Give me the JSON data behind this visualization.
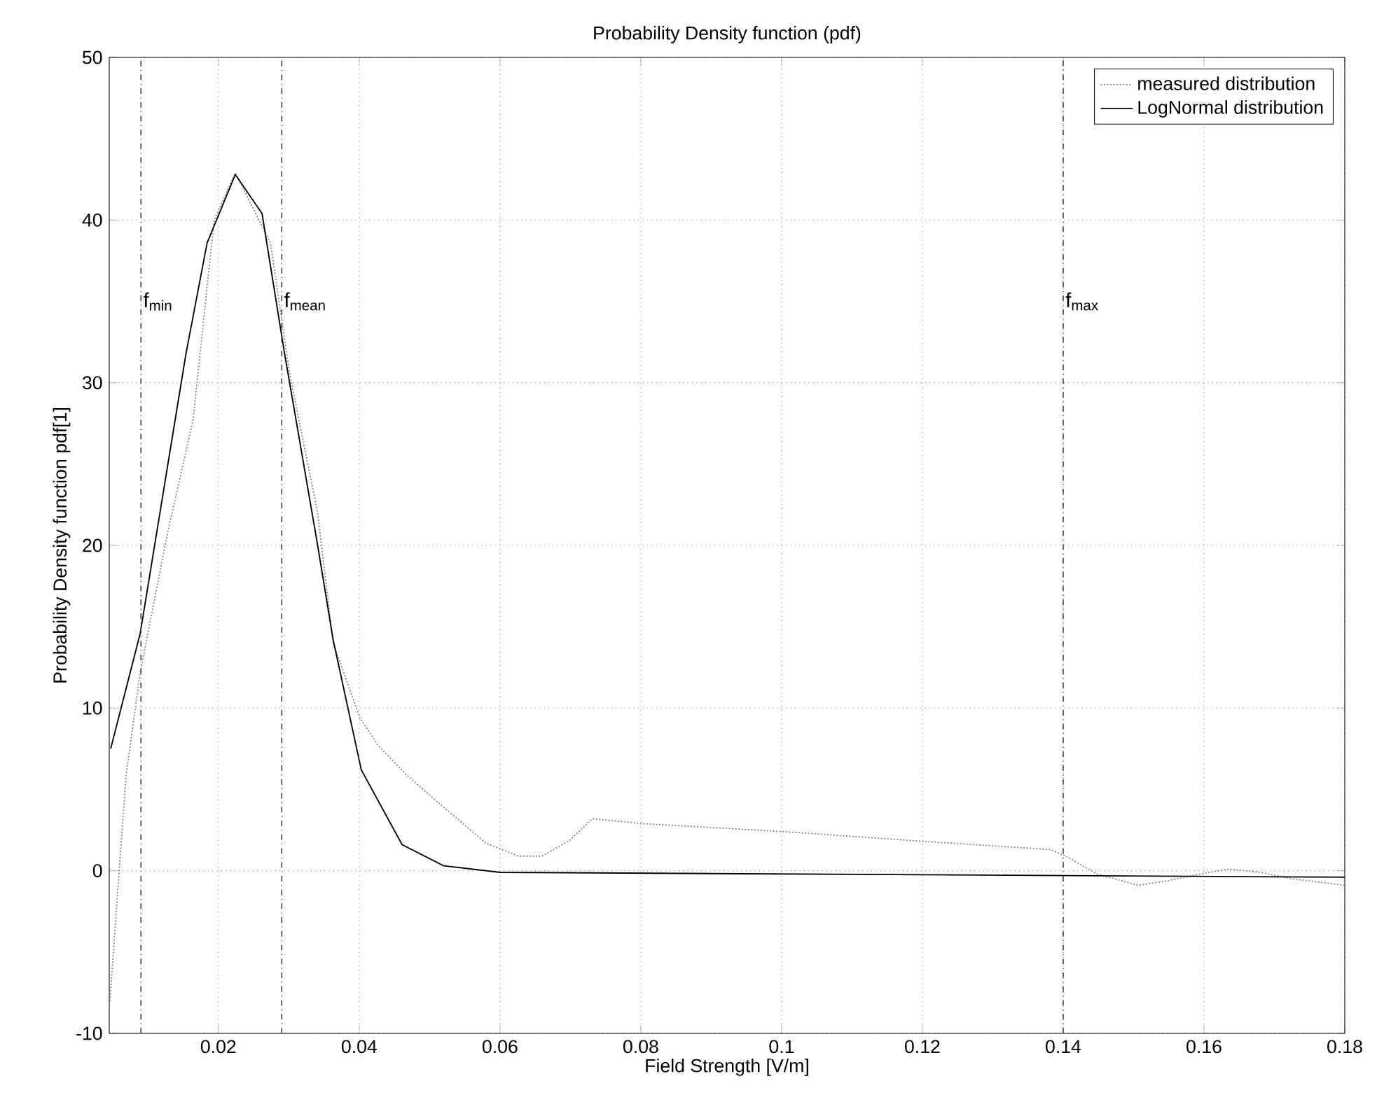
{
  "chart_data": {
    "type": "line",
    "title": "Probability Density function (pdf)",
    "xlabel": "Field Strength [V/m]",
    "ylabel": "Probability Density function pdf[1]",
    "xlim": [
      0.0045,
      0.18
    ],
    "ylim": [
      -10,
      50
    ],
    "xticks": [
      0.02,
      0.04,
      0.06,
      0.08,
      0.1,
      0.12,
      0.14,
      0.16,
      0.18
    ],
    "yticks": [
      -10,
      0,
      10,
      20,
      30,
      40,
      50
    ],
    "grid": true,
    "legend": "top right",
    "marker": "none",
    "series": [
      {
        "name": "measured distribution",
        "color": "#808080",
        "line_style": "dotted",
        "x": [
          0.0046,
          0.0059,
          0.0069,
          0.0089,
          0.0128,
          0.0164,
          0.0194,
          0.0224,
          0.0274,
          0.0301,
          0.0341,
          0.0363,
          0.0401,
          0.0427,
          0.0467,
          0.0512,
          0.058,
          0.0626,
          0.066,
          0.07,
          0.0731,
          0.08,
          0.1004,
          0.1203,
          0.1382,
          0.1408,
          0.1448,
          0.1507,
          0.155,
          0.1595,
          0.1635,
          0.168,
          0.1726,
          0.18
        ],
        "values": [
          -8,
          0,
          5.9,
          12.2,
          20.8,
          27.7,
          40,
          42.9,
          38.6,
          30.6,
          22,
          14,
          9.4,
          7.7,
          5.9,
          4.2,
          1.7,
          0.9,
          0.9,
          1.9,
          3.2,
          2.9,
          2.4,
          1.8,
          1.3,
          0.8,
          -0.2,
          -0.9,
          -0.6,
          -0.2,
          0.1,
          -0.1,
          -0.5,
          -0.9
        ]
      },
      {
        "name": "LogNormal distribution",
        "color": "#000000",
        "line_style": "solid",
        "x": [
          0.0047,
          0.0089,
          0.0154,
          0.0184,
          0.0224,
          0.0262,
          0.0294,
          0.0341,
          0.0363,
          0.0403,
          0.0461,
          0.052,
          0.06,
          0.1,
          0.14,
          0.18
        ],
        "values": [
          7.5,
          14.6,
          31.8,
          38.6,
          42.8,
          40.4,
          31.8,
          20,
          14.2,
          6.2,
          1.6,
          0.3,
          -0.1,
          -0.2,
          -0.3,
          -0.4
        ]
      }
    ],
    "ref_lines": [
      {
        "axis": "x",
        "value": 0.009,
        "label": "f$_{min}$",
        "color": "#404040",
        "line_style": "dashed"
      },
      {
        "axis": "x",
        "value": 0.029,
        "label": "f$_{mean}$",
        "color": "#404040",
        "line_style": "dashed"
      },
      {
        "axis": "x",
        "value": 0.14,
        "label": "f$_{max}$",
        "color": "#404040",
        "line_style": "dashed"
      }
    ]
  }
}
